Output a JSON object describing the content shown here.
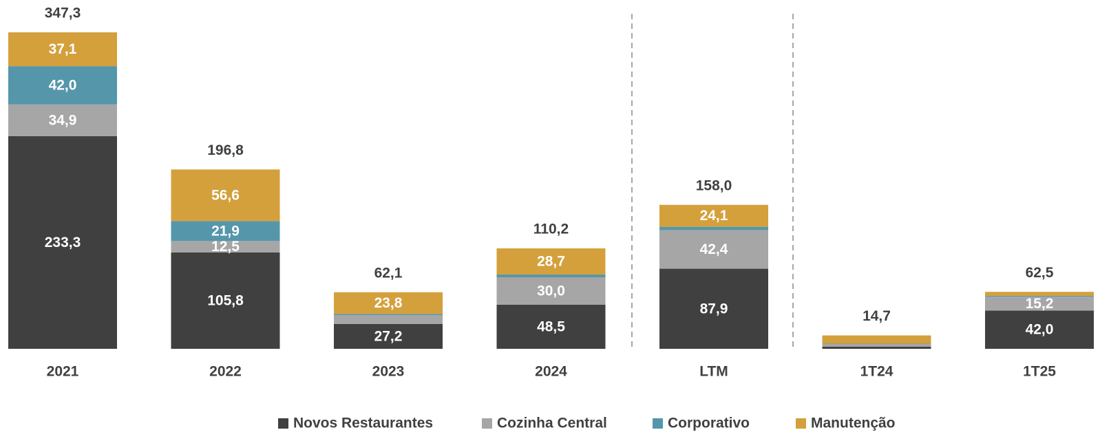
{
  "chart_data": {
    "type": "stacked_bar",
    "categories": [
      "2021",
      "2022",
      "2023",
      "2024",
      "LTM",
      "1T24",
      "1T25"
    ],
    "series": [
      {
        "name": "Novos Restaurantes",
        "color": "#404040",
        "values": [
          233.3,
          105.8,
          27.2,
          48.5,
          87.9,
          2.3,
          42.0
        ],
        "value_labels": [
          "233,3",
          "105,8",
          "27,2",
          "48,5",
          "87,9",
          null,
          "42,0"
        ]
      },
      {
        "name": "Cozinha Central",
        "color": "#a6a6a6",
        "values": [
          34.9,
          12.5,
          9.7,
          30.0,
          42.4,
          3.0,
          15.2
        ],
        "value_labels": [
          "34,9",
          "12,5",
          null,
          "30,0",
          "42,4",
          null,
          "15,2"
        ]
      },
      {
        "name": "Corporativo",
        "color": "#5596ab",
        "values": [
          42.0,
          21.9,
          1.4,
          3.0,
          3.6,
          0.4,
          1.0
        ],
        "value_labels": [
          "42,0",
          "21,9",
          null,
          null,
          null,
          null,
          null
        ]
      },
      {
        "name": "Manutenção",
        "color": "#d4a03c",
        "values": [
          37.1,
          56.6,
          23.8,
          28.7,
          24.1,
          9.0,
          4.3
        ],
        "value_labels": [
          "37,1",
          "56,6",
          "23,8",
          "28,7",
          "24,1",
          null,
          null
        ]
      }
    ],
    "totals": [
      347.3,
      196.8,
      62.1,
      110.2,
      158.0,
      14.7,
      62.5
    ],
    "total_labels": [
      "347,3",
      "196,8",
      "62,1",
      "110,2",
      "158,0",
      "14,7",
      "62,5"
    ],
    "legend": "bottom"
  }
}
